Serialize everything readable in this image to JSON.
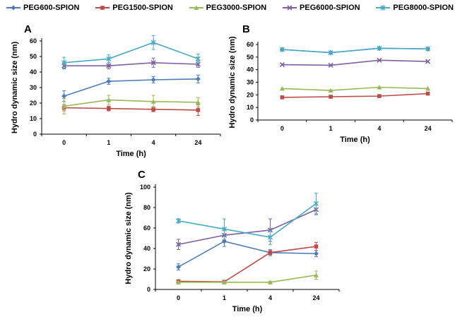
{
  "colors": {
    "PEG600-SPION": "#4a7ebb",
    "PEG1500-SPION": "#be4b48",
    "PEG3000-SPION": "#98b954",
    "PEG6000-SPION": "#7d60a0",
    "PEG8000-SPION": "#46aac5"
  },
  "legend": [
    {
      "name": "PEG600-SPION",
      "color": "#4a7ebb",
      "marker": "diamond"
    },
    {
      "name": "PEG1500-SPION",
      "color": "#be4b48",
      "marker": "square"
    },
    {
      "name": "PEG3000-SPION",
      "color": "#98b954",
      "marker": "triangle"
    },
    {
      "name": "PEG6000-SPION",
      "color": "#7d60a0",
      "marker": "x"
    },
    {
      "name": "PEG8000-SPION",
      "color": "#46aac5",
      "marker": "star"
    }
  ],
  "chart_data": [
    {
      "panel": "A",
      "type": "line",
      "categories": [
        "0",
        "1",
        "4",
        "24"
      ],
      "xlabel": "Time (h)",
      "ylabel": "Hydro dynamic size (nm)",
      "ylim": [
        0,
        60
      ],
      "yticks": [
        0,
        10,
        20,
        30,
        40,
        50,
        60
      ],
      "series": [
        {
          "name": "PEG600-SPION",
          "values": [
            24.5,
            34,
            35,
            35.5
          ],
          "errors": [
            3.5,
            2,
            2,
            2.5
          ]
        },
        {
          "name": "PEG1500-SPION",
          "values": [
            17,
            16.5,
            16,
            15.5
          ],
          "errors": [
            2,
            1.5,
            1.5,
            3.5
          ]
        },
        {
          "name": "PEG3000-SPION",
          "values": [
            18,
            22,
            21,
            20.5
          ],
          "errors": [
            5,
            3,
            4,
            3
          ]
        },
        {
          "name": "PEG6000-SPION",
          "values": [
            44,
            44,
            46,
            45
          ],
          "errors": [
            2,
            2,
            3,
            2
          ]
        },
        {
          "name": "PEG8000-SPION",
          "values": [
            46,
            48.5,
            59,
            48.5
          ],
          "errors": [
            3.5,
            2.5,
            4.5,
            3
          ]
        }
      ]
    },
    {
      "panel": "B",
      "type": "line",
      "categories": [
        "0",
        "1",
        "4",
        "24"
      ],
      "xlabel": "Time (h)",
      "ylabel": "Hydro dynamic size (nm)",
      "ylim": [
        0,
        60
      ],
      "yticks": [
        0,
        10,
        20,
        30,
        40,
        50,
        60
      ],
      "series": [
        {
          "name": "PEG600-SPION",
          "values": [
            56,
            53.5,
            57,
            56.5
          ],
          "errors": [
            0,
            0,
            0,
            0
          ]
        },
        {
          "name": "PEG1500-SPION",
          "values": [
            18,
            18.5,
            19,
            21
          ],
          "errors": [
            0,
            0,
            0,
            0
          ]
        },
        {
          "name": "PEG3000-SPION",
          "values": [
            25,
            23.5,
            26,
            25
          ],
          "errors": [
            0,
            0,
            0,
            0
          ]
        },
        {
          "name": "PEG6000-SPION",
          "values": [
            44,
            43.5,
            47.5,
            46.5
          ],
          "errors": [
            0,
            0,
            0,
            0
          ]
        },
        {
          "name": "PEG8000-SPION",
          "values": [
            56,
            53.5,
            57,
            56.5
          ],
          "errors": [
            0,
            0,
            0,
            0
          ]
        }
      ]
    },
    {
      "panel": "C",
      "type": "line",
      "categories": [
        "0",
        "1",
        "4",
        "24"
      ],
      "xlabel": "Time (h)",
      "ylabel": "Hydro dynamic size (nm)",
      "ylim": [
        0,
        100
      ],
      "yticks": [
        0,
        20,
        40,
        60,
        80,
        100
      ],
      "series": [
        {
          "name": "PEG600-SPION",
          "values": [
            22,
            47,
            36,
            35
          ],
          "errors": [
            3,
            5,
            3,
            3
          ]
        },
        {
          "name": "PEG1500-SPION",
          "values": [
            8,
            7.5,
            36,
            42
          ],
          "errors": [
            1,
            1,
            2,
            4
          ]
        },
        {
          "name": "PEG3000-SPION",
          "values": [
            7,
            7,
            7,
            14
          ],
          "errors": [
            1,
            1,
            1,
            4
          ]
        },
        {
          "name": "PEG6000-SPION",
          "values": [
            44,
            53,
            58,
            78
          ],
          "errors": [
            5,
            5,
            11,
            5
          ]
        },
        {
          "name": "PEG8000-SPION",
          "values": [
            67,
            59,
            51,
            84
          ],
          "errors": [
            2,
            10,
            7,
            10
          ]
        }
      ]
    }
  ]
}
